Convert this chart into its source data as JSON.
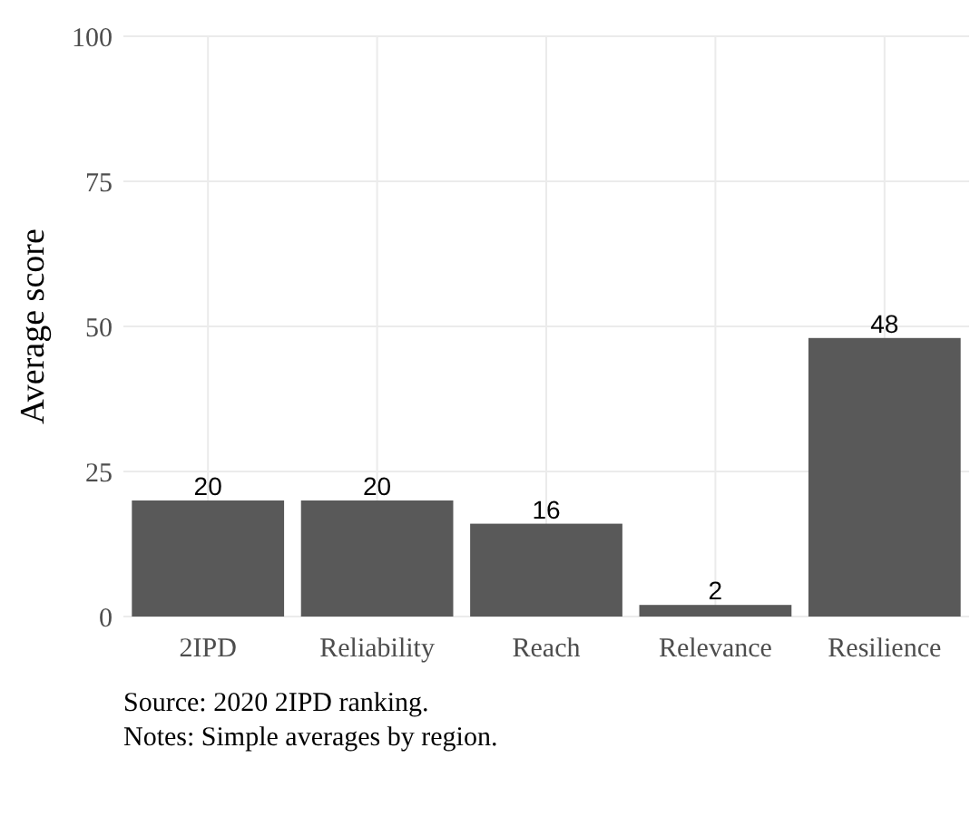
{
  "chart_data": {
    "type": "bar",
    "ylabel": "Average score",
    "categories": [
      "2IPD",
      "Reliability",
      "Reach",
      "Relevance",
      "Resilience"
    ],
    "values": [
      20,
      20,
      16,
      2,
      48
    ],
    "color": "#595959",
    "data_labels": true,
    "ylim": [
      0,
      100
    ],
    "yticks": [
      0,
      25,
      50,
      75,
      100
    ],
    "grid": true,
    "annotations": [
      "Source: 2020 2IPD ranking.",
      "Notes: Simple averages by region."
    ]
  }
}
